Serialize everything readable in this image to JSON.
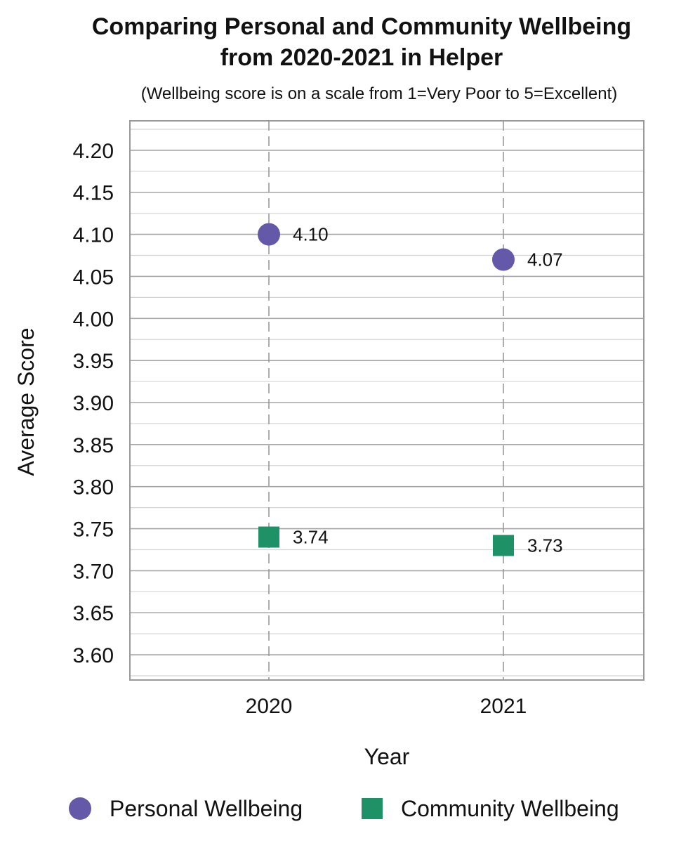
{
  "chart_data": {
    "type": "scatter",
    "title_lines": [
      "Comparing Personal and Community Wellbeing",
      "from 2020-2021 in Helper"
    ],
    "subtitle": "(Wellbeing score is on a scale from 1=Very Poor to 5=Excellent)",
    "xlabel": "Year",
    "ylabel": "Average Score",
    "categories": [
      "2020",
      "2021"
    ],
    "ylim": [
      3.57,
      4.235
    ],
    "yticks": [
      "3.60",
      "3.65",
      "3.70",
      "3.75",
      "3.80",
      "3.85",
      "3.90",
      "3.95",
      "4.00",
      "4.05",
      "4.10",
      "4.15",
      "4.20"
    ],
    "grid": true,
    "legend_position": "bottom",
    "series": [
      {
        "name": "Personal Wellbeing",
        "marker": "circle",
        "color": "#6458A8",
        "values": [
          4.1,
          4.07
        ],
        "labels": [
          "4.10",
          "4.07"
        ]
      },
      {
        "name": "Community Wellbeing",
        "marker": "square",
        "color": "#1F9167",
        "values": [
          3.74,
          3.73
        ],
        "labels": [
          "3.74",
          "3.73"
        ]
      }
    ]
  }
}
